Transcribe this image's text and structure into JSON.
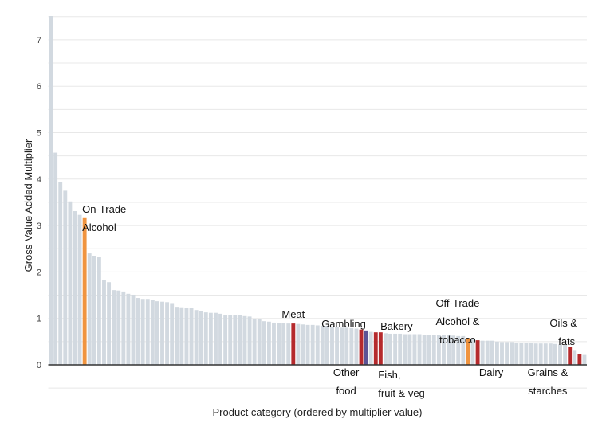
{
  "chart_data": {
    "type": "bar",
    "title": "",
    "xlabel": "Product category (ordered by multiplier value)",
    "ylabel": "Gross Value Added Multiplier",
    "ylim": [
      -0.5,
      7.5
    ],
    "yticks": [
      0,
      1,
      2,
      3,
      4,
      5,
      6,
      7
    ],
    "grid": true,
    "grid_step": 0.5,
    "legend": "none",
    "colors": {
      "default": "#d2d9e0",
      "alcohol": "#f0943f",
      "food": "#b52a2d",
      "gambling": "#5d5495",
      "axis": "#333333",
      "grid": "#e8e8e8"
    },
    "values": [
      7.55,
      4.57,
      3.93,
      3.75,
      3.52,
      3.31,
      3.23,
      3.16,
      2.4,
      2.35,
      2.33,
      1.83,
      1.78,
      1.61,
      1.6,
      1.58,
      1.53,
      1.51,
      1.44,
      1.42,
      1.42,
      1.4,
      1.37,
      1.36,
      1.35,
      1.33,
      1.25,
      1.24,
      1.22,
      1.22,
      1.18,
      1.15,
      1.13,
      1.12,
      1.12,
      1.1,
      1.08,
      1.08,
      1.08,
      1.08,
      1.05,
      1.04,
      0.98,
      0.98,
      0.94,
      0.93,
      0.91,
      0.9,
      0.9,
      0.89,
      0.89,
      0.88,
      0.87,
      0.86,
      0.86,
      0.85,
      0.84,
      0.84,
      0.82,
      0.81,
      0.8,
      0.8,
      0.79,
      0.78,
      0.76,
      0.74,
      0.71,
      0.7,
      0.7,
      0.68,
      0.67,
      0.67,
      0.67,
      0.66,
      0.66,
      0.66,
      0.66,
      0.65,
      0.65,
      0.65,
      0.65,
      0.64,
      0.64,
      0.63,
      0.62,
      0.62,
      0.58,
      0.57,
      0.53,
      0.52,
      0.52,
      0.52,
      0.5,
      0.49,
      0.49,
      0.49,
      0.48,
      0.48,
      0.47,
      0.47,
      0.46,
      0.46,
      0.46,
      0.46,
      0.45,
      0.44,
      0.43,
      0.38,
      0.32,
      0.24,
      0.23
    ],
    "highlights": [
      {
        "index": 7,
        "label": [
          "On-Trade",
          "Alcohol"
        ],
        "color_key": "alcohol",
        "label_pos": "above-right"
      },
      {
        "index": 50,
        "label": [
          "Meat"
        ],
        "color_key": "food",
        "label_pos": "above"
      },
      {
        "index": 64,
        "label": [
          "Gambling"
        ],
        "color_key": "food",
        "label_pos": "above"
      },
      {
        "index": 65,
        "label": [
          "Other",
          "food"
        ],
        "color_key": "gambling",
        "label_pos": "below"
      },
      {
        "index": 67,
        "label": [
          "Fish,",
          "fruit & veg"
        ],
        "color_key": "food",
        "label_pos": "below"
      },
      {
        "index": 68,
        "label": [
          "Bakery"
        ],
        "color_key": "food",
        "label_pos": "above"
      },
      {
        "index": 86,
        "label": [
          "Off-Trade",
          "Alcohol &",
          "tobacco"
        ],
        "color_key": "alcohol",
        "label_pos": "above"
      },
      {
        "index": 88,
        "label": [
          "Dairy"
        ],
        "color_key": "food",
        "label_pos": "below"
      },
      {
        "index": 107,
        "label": [
          "Oils &",
          "fats"
        ],
        "color_key": "food",
        "label_pos": "above"
      },
      {
        "index": 109,
        "label": [
          "Grains &",
          "starches"
        ],
        "color_key": "food",
        "label_pos": "below"
      }
    ]
  }
}
